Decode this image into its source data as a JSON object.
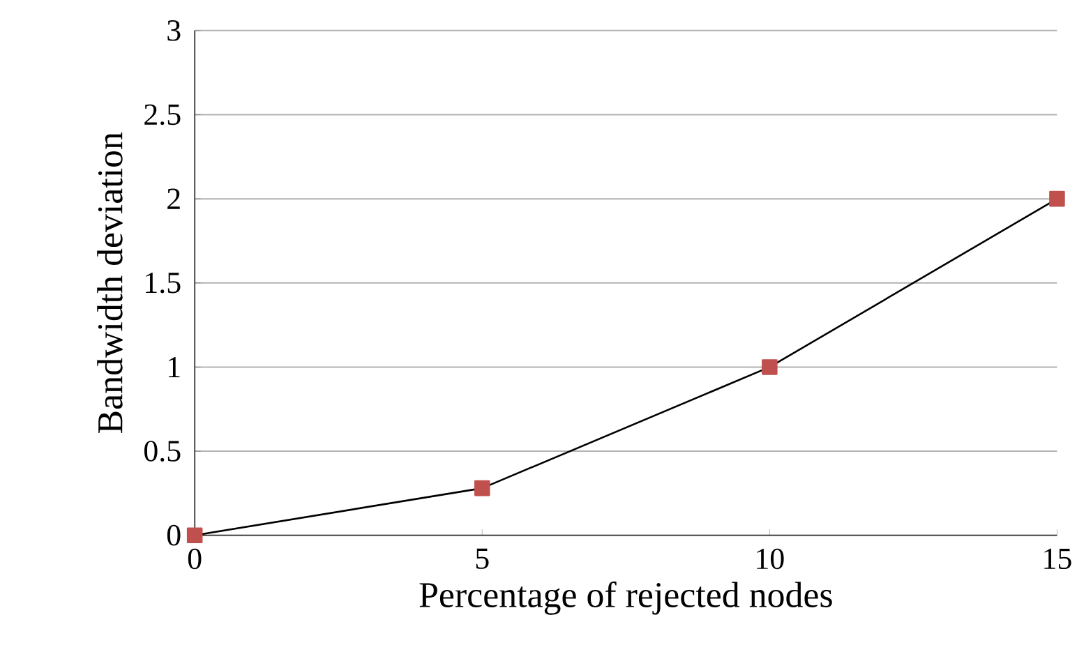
{
  "chart_data": {
    "type": "line",
    "xlabel": "Percentage of rejected nodes",
    "ylabel": "Bandwidth deviation",
    "x": [
      0,
      5,
      10,
      15
    ],
    "series": [
      {
        "color": "#c0504d",
        "values": [
          0,
          0.28,
          1,
          2
        ]
      }
    ],
    "xlim": [
      0,
      15
    ],
    "xticks": [
      0,
      5,
      10,
      15
    ],
    "ylim": [
      0,
      3
    ],
    "yticks": [
      0,
      0.5,
      1,
      1.5,
      2,
      2.5,
      3
    ],
    "grid": "y",
    "marker": "square",
    "line_style": "solid"
  }
}
